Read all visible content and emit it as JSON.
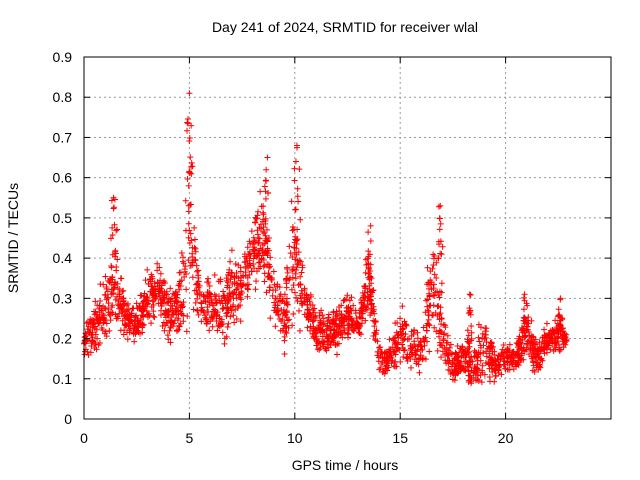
{
  "chart_data": {
    "type": "scatter",
    "title": "Day 241 of 2024, SRMTID for receiver wlal",
    "xlabel": "GPS time / hours",
    "ylabel": "SRMTID / TECUs",
    "xlim": [
      0,
      25
    ],
    "ylim": [
      0,
      0.9
    ],
    "x_ticks": [
      0,
      5,
      10,
      15,
      20
    ],
    "y_ticks": [
      0,
      0.1,
      0.2,
      0.3,
      0.4,
      0.5,
      0.6,
      0.7,
      0.8,
      0.9
    ],
    "grid": true,
    "marker": "+",
    "color": "#ff0000",
    "data_range_hours": [
      0,
      22.9
    ],
    "series": [
      {
        "name": "SRMTID",
        "envelope_hours": [
          0,
          0.5,
          1.0,
          1.5,
          2.0,
          2.5,
          3.0,
          3.5,
          4.0,
          4.5,
          5.0,
          5.5,
          6.0,
          6.5,
          7.0,
          7.5,
          8.0,
          8.5,
          9.0,
          9.5,
          10.0,
          10.5,
          11.0,
          11.5,
          12.0,
          12.5,
          13.0,
          13.5,
          14.0,
          14.5,
          15.0,
          15.5,
          16.0,
          16.5,
          17.0,
          17.5,
          18.0,
          18.5,
          19.0,
          19.5,
          20.0,
          20.5,
          21.0,
          21.5,
          22.0,
          22.5,
          22.9
        ],
        "envelope_low": [
          0.15,
          0.14,
          0.16,
          0.17,
          0.18,
          0.17,
          0.22,
          0.24,
          0.16,
          0.18,
          0.22,
          0.22,
          0.18,
          0.16,
          0.2,
          0.22,
          0.3,
          0.28,
          0.22,
          0.12,
          0.1,
          0.22,
          0.14,
          0.14,
          0.15,
          0.15,
          0.18,
          0.22,
          0.1,
          0.1,
          0.12,
          0.1,
          0.08,
          0.14,
          0.1,
          0.08,
          0.08,
          0.05,
          0.04,
          0.08,
          0.1,
          0.1,
          0.12,
          0.1,
          0.15,
          0.16,
          0.18
        ],
        "envelope_high": [
          0.25,
          0.3,
          0.38,
          0.52,
          0.32,
          0.3,
          0.38,
          0.44,
          0.36,
          0.38,
          0.8,
          0.35,
          0.38,
          0.36,
          0.46,
          0.42,
          0.55,
          0.62,
          0.42,
          0.36,
          0.67,
          0.38,
          0.3,
          0.28,
          0.3,
          0.36,
          0.28,
          0.47,
          0.2,
          0.2,
          0.3,
          0.26,
          0.24,
          0.52,
          0.3,
          0.18,
          0.22,
          0.2,
          0.3,
          0.18,
          0.2,
          0.2,
          0.3,
          0.2,
          0.25,
          0.28,
          0.22
        ],
        "spikes": [
          {
            "x": 1.4,
            "y": 0.55
          },
          {
            "x": 5.0,
            "y": 0.81
          },
          {
            "x": 8.7,
            "y": 0.65
          },
          {
            "x": 10.1,
            "y": 0.68
          },
          {
            "x": 13.6,
            "y": 0.48
          },
          {
            "x": 16.9,
            "y": 0.53
          },
          {
            "x": 18.3,
            "y": 0.31
          },
          {
            "x": 20.9,
            "y": 0.31
          },
          {
            "x": 22.6,
            "y": 0.3
          }
        ]
      }
    ]
  }
}
